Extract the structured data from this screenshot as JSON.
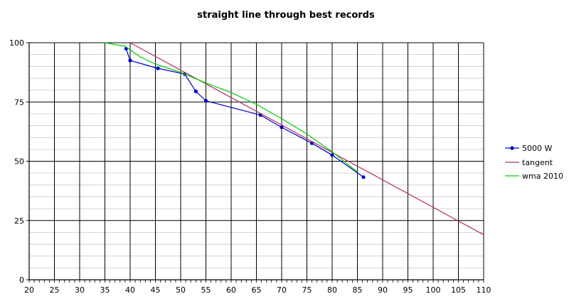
{
  "chart_data": {
    "type": "line",
    "title": "straight line through best records",
    "xlabel": "",
    "ylabel": "",
    "xlim": [
      20,
      110
    ],
    "ylim": [
      0,
      100
    ],
    "x_major_ticks": [
      20,
      25,
      30,
      35,
      40,
      45,
      50,
      55,
      60,
      65,
      70,
      75,
      80,
      85,
      90,
      95,
      100,
      105,
      110
    ],
    "y_major_ticks": [
      0,
      25,
      50,
      75,
      100
    ],
    "y_minor_step": 5,
    "x_minor_step": 1,
    "grid": true,
    "legend_position": "right",
    "series": [
      {
        "name": "5000 W",
        "color": "#0000cc",
        "marker": "circle",
        "points": [
          [
            39.2,
            97.5
          ],
          [
            40,
            92.5
          ],
          [
            45.5,
            89.2
          ],
          [
            50.8,
            86.8
          ],
          [
            53,
            79.5
          ],
          [
            55,
            75.5
          ],
          [
            65.8,
            69.5
          ],
          [
            70,
            64.3
          ],
          [
            76,
            57.6
          ],
          [
            80,
            52.6
          ],
          [
            86.2,
            43.3
          ]
        ]
      },
      {
        "name": "tangent",
        "color": "#b03060",
        "marker": "none",
        "points": [
          [
            40,
            100
          ],
          [
            110,
            19
          ]
        ]
      },
      {
        "name": "wma 2010",
        "color": "#00cc00",
        "marker": "none",
        "points": [
          [
            35,
            100
          ],
          [
            39,
            98.5
          ],
          [
            42,
            94
          ],
          [
            45,
            91
          ],
          [
            50,
            87.5
          ],
          [
            55,
            83
          ],
          [
            60,
            79
          ],
          [
            65,
            74
          ],
          [
            70,
            68
          ],
          [
            75,
            61.5
          ],
          [
            80,
            54
          ],
          [
            85,
            45.5
          ]
        ]
      }
    ],
    "legend": [
      {
        "label": "5000 W"
      },
      {
        "label": "tangent"
      },
      {
        "label": "wma 2010"
      }
    ]
  }
}
